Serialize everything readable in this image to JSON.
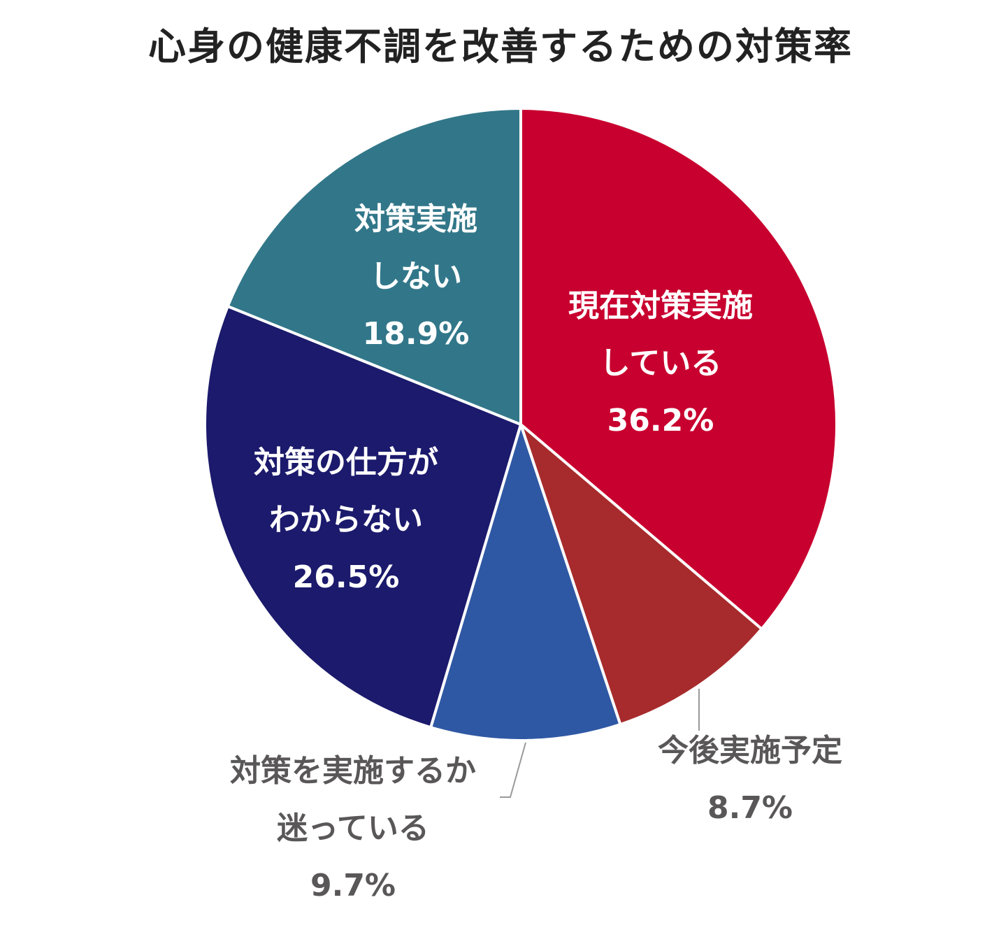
{
  "chart_data": {
    "type": "pie",
    "title": "心身の健康不調を改善するための対策率",
    "slices": [
      {
        "lines": [
          "現在対策実施",
          "している"
        ],
        "value_label": "36.2%",
        "value": 36.2,
        "color": "#C8002F",
        "label_position": "inside"
      },
      {
        "lines": [
          "今後実施予定"
        ],
        "value_label": "8.7%",
        "value": 8.7,
        "color": "#A72B2C",
        "label_position": "outside"
      },
      {
        "lines": [
          "対策を実施するか",
          "迷っている"
        ],
        "value_label": "9.7%",
        "value": 9.7,
        "color": "#2F58A4",
        "label_position": "outside"
      },
      {
        "lines": [
          "対策の仕方が",
          "わからない"
        ],
        "value_label": "26.5%",
        "value": 26.5,
        "color": "#1B1A6C",
        "label_position": "inside"
      },
      {
        "lines": [
          "対策実施",
          "しない"
        ],
        "value_label": "18.9%",
        "value": 18.9,
        "color": "#327789",
        "label_position": "inside"
      }
    ],
    "start": "12 o'clock",
    "direction": "clockwise",
    "legend": "none"
  }
}
